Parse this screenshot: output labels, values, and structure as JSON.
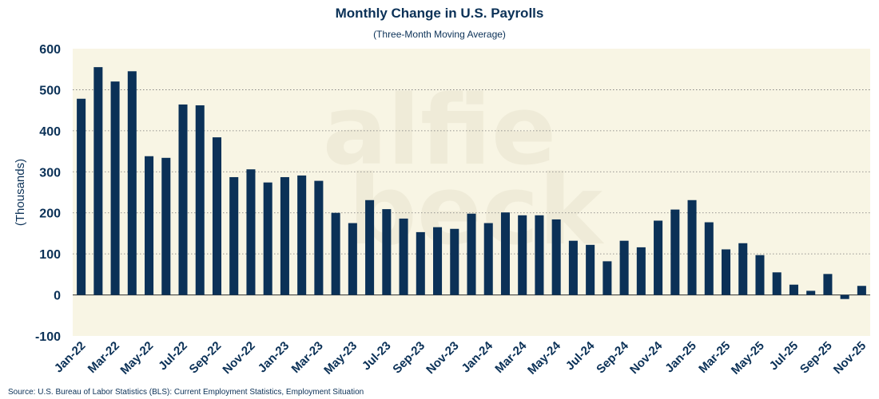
{
  "colors": {
    "bar": "#0b3157",
    "plot_background": "#f8f5e4",
    "text": "#0b3157",
    "grid": "#777777"
  },
  "source": "Source: U.S. Bureau of Labor Statistics (BLS): Current Employment Statistics, Employment Situation",
  "watermark": [
    "alfie",
    "beck"
  ],
  "chart_data": {
    "type": "bar",
    "title": "Monthly Change in U.S. Payrolls",
    "subtitle": "(Three-Month Moving Average)",
    "xlabel": "",
    "ylabel": "(Thousands)",
    "ylim": [
      -100,
      600
    ],
    "yticks": [
      -100,
      0,
      100,
      200,
      300,
      400,
      500,
      600
    ],
    "grid": "horizontal dotted",
    "legend": "none",
    "categories": [
      "Jan-22",
      "Feb-22",
      "Mar-22",
      "Apr-22",
      "May-22",
      "Jun-22",
      "Jul-22",
      "Aug-22",
      "Sep-22",
      "Oct-22",
      "Nov-22",
      "Dec-22",
      "Jan-23",
      "Feb-23",
      "Mar-23",
      "Apr-23",
      "May-23",
      "Jun-23",
      "Jul-23",
      "Aug-23",
      "Sep-23",
      "Oct-23",
      "Nov-23",
      "Dec-23",
      "Jan-24",
      "Feb-24",
      "Mar-24",
      "Apr-24",
      "May-24",
      "Jun-24",
      "Jul-24",
      "Aug-24",
      "Sep-24",
      "Oct-24",
      "Nov-24",
      "Dec-24",
      "Jan-25",
      "Feb-25",
      "Mar-25",
      "Apr-25",
      "May-25",
      "Jun-25",
      "Jul-25",
      "Aug-25",
      "Sep-25",
      "Oct-25",
      "Nov-25"
    ],
    "xtick_labels": [
      "Jan-22",
      "Mar-22",
      "May-22",
      "Jul-22",
      "Sep-22",
      "Nov-22",
      "Jan-23",
      "Mar-23",
      "May-23",
      "Jul-23",
      "Sep-23",
      "Nov-23",
      "Jan-24",
      "Mar-24",
      "May-24",
      "Jul-24",
      "Sep-24",
      "Nov-24",
      "Jan-25",
      "Mar-25",
      "May-25",
      "Jul-25",
      "Sep-25",
      "Nov-25"
    ],
    "values": [
      478,
      555,
      520,
      545,
      338,
      334,
      464,
      462,
      384,
      287,
      306,
      274,
      287,
      291,
      278,
      200,
      175,
      231,
      209,
      186,
      153,
      165,
      161,
      198,
      175,
      201,
      194,
      194,
      184,
      132,
      122,
      82,
      132,
      116,
      181,
      208,
      231,
      177,
      111,
      126,
      97,
      55,
      25,
      10,
      51,
      -10,
      22
    ]
  }
}
